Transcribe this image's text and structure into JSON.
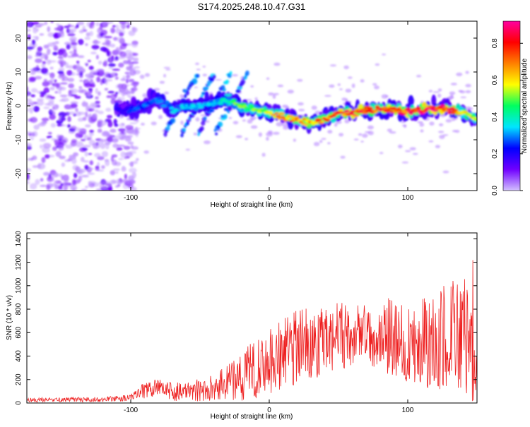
{
  "title": "S174.2025.248.10.47.G31",
  "chart_data": [
    {
      "type": "heatmap",
      "title": "S174.2025.248.10.47.G31",
      "xlabel": "Height of straight line (km)",
      "ylabel": "Frequency (Hz)",
      "xlim": [
        -175,
        150
      ],
      "ylim": [
        -25,
        25
      ],
      "xticks": [
        -100,
        0,
        100
      ],
      "xtick_labels": [
        "-100",
        "0",
        "100"
      ],
      "yticks": [
        -20,
        -10,
        0,
        10,
        20
      ],
      "ytick_labels": [
        "-20",
        "-10",
        "0",
        "10",
        "20"
      ],
      "colorbar": {
        "label": "Normalized spectral amplitude",
        "range": [
          0.0,
          0.92
        ],
        "ticks": [
          0.0,
          0.2,
          0.4,
          0.6,
          0.8
        ],
        "tick_labels": [
          "0.0",
          "0.2",
          "0.4",
          "0.6",
          "0.8"
        ],
        "colors": [
          "#d3c0ff",
          "#7000ff",
          "#0000ff",
          "#00e5ff",
          "#00ff60",
          "#ffff00",
          "#ff8000",
          "#ff0000",
          "#ff00a0"
        ]
      },
      "ridge": {
        "x": [
          -110,
          -100,
          -90,
          -80,
          -70,
          -60,
          -50,
          -40,
          -30,
          -20,
          -10,
          0,
          10,
          20,
          30,
          40,
          50,
          60,
          70,
          80,
          90,
          100,
          110,
          120,
          130,
          140,
          150
        ],
        "frequency": [
          -1,
          -1,
          0,
          2,
          -1,
          0,
          0,
          1,
          2,
          0,
          -1,
          -2,
          -3,
          -4,
          -5,
          -4,
          -2,
          -2,
          -1,
          -1,
          -1,
          -2,
          -1,
          -1,
          -1,
          -2,
          -4
        ],
        "amplitude": [
          0.2,
          0.25,
          0.3,
          0.3,
          0.35,
          0.35,
          0.35,
          0.35,
          0.45,
          0.55,
          0.55,
          0.65,
          0.7,
          0.75,
          0.75,
          0.8,
          0.8,
          0.85,
          0.85,
          0.85,
          0.85,
          0.85,
          0.9,
          0.9,
          0.85,
          0.7,
          0.6
        ]
      },
      "noise_region": [
        -175,
        -100
      ]
    },
    {
      "type": "line",
      "xlabel": "Height of straight line (km)",
      "ylabel": "SNR (10 * v/v)",
      "xlim": [
        -175,
        150
      ],
      "ylim": [
        0,
        1450
      ],
      "xticks": [
        -100,
        0,
        100
      ],
      "xtick_labels": [
        "-100",
        "0",
        "100"
      ],
      "yticks": [
        0,
        200,
        400,
        600,
        800,
        1000,
        1200,
        1400
      ],
      "ytick_labels": [
        "0",
        "200",
        "400",
        "600",
        "800",
        "1000",
        "1200",
        "1400"
      ],
      "series": [
        {
          "name": "SNR",
          "color": "#ee2020",
          "trend_x": [
            -175,
            -120,
            -100,
            -90,
            -80,
            -70,
            -60,
            -50,
            -40,
            -30,
            -20,
            -10,
            0,
            10,
            20,
            30,
            40,
            50,
            60,
            70,
            80,
            90,
            100,
            110,
            120,
            130,
            140,
            150
          ],
          "trend_mean": [
            25,
            30,
            45,
            110,
            120,
            100,
            90,
            110,
            130,
            170,
            220,
            290,
            350,
            420,
            470,
            510,
            540,
            560,
            570,
            580,
            590,
            560,
            520,
            520,
            520,
            560,
            580,
            500
          ],
          "trend_spread": [
            20,
            20,
            30,
            70,
            90,
            80,
            80,
            100,
            120,
            170,
            220,
            250,
            280,
            300,
            320,
            320,
            300,
            300,
            280,
            250,
            300,
            350,
            350,
            400,
            420,
            500,
            500,
            520
          ]
        }
      ]
    }
  ]
}
